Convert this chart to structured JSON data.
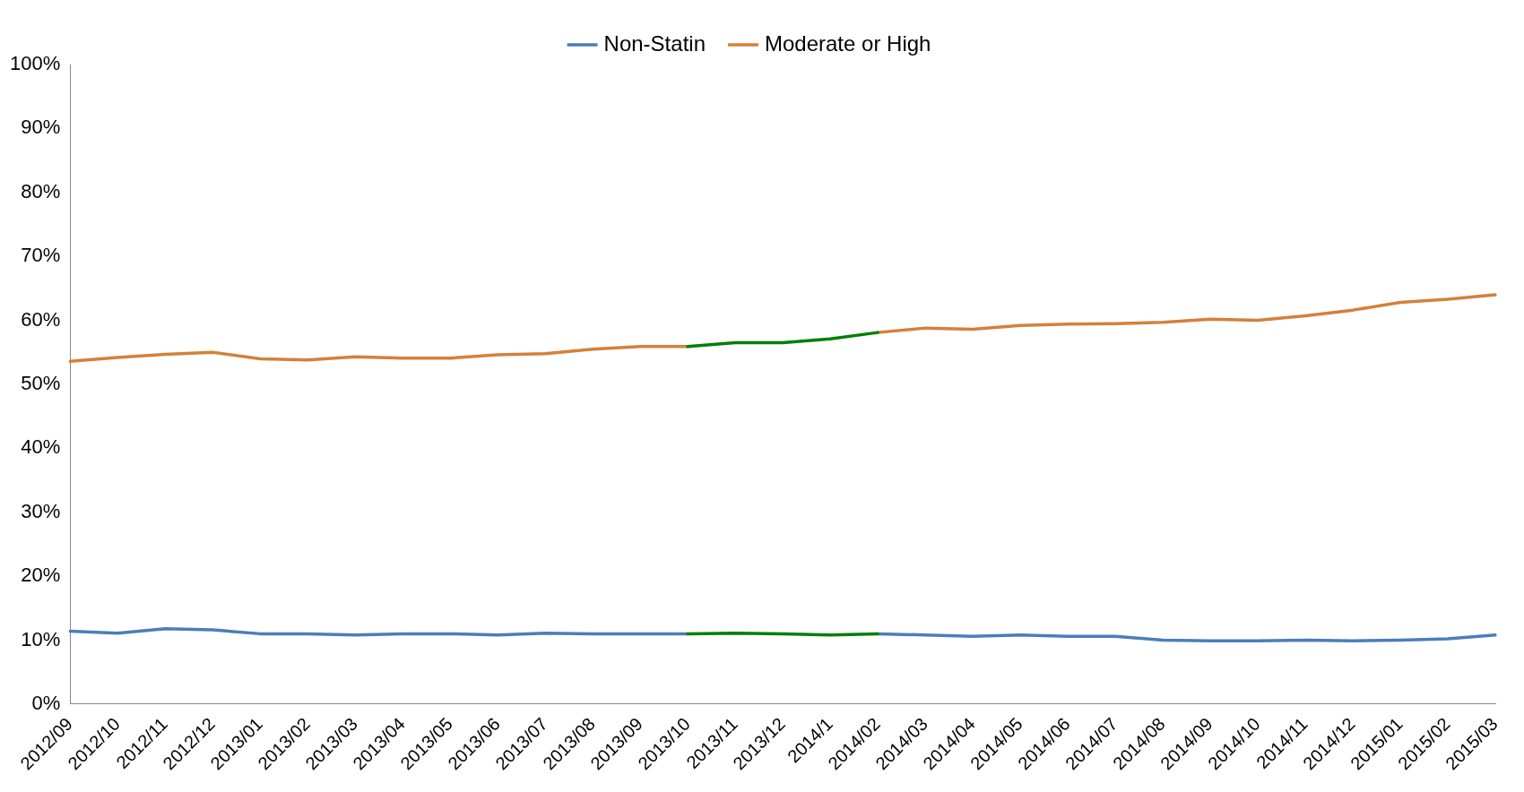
{
  "chart_data": {
    "type": "line",
    "categories": [
      "2012/09",
      "2012/10",
      "2012/11",
      "2012/12",
      "2013/01",
      "2013/02",
      "2013/03",
      "2013/04",
      "2013/05",
      "2013/06",
      "2013/07",
      "2013/08",
      "2013/09",
      "2013/10",
      "2013/11",
      "2013/12",
      "2014/1",
      "2014/02",
      "2014/03",
      "2014/04",
      "2014/05",
      "2014/06",
      "2014/07",
      "2014/08",
      "2014/09",
      "2014/10",
      "2014/11",
      "2014/12",
      "2015/01",
      "2015/02",
      "2015/03"
    ],
    "series": [
      {
        "name": "Moderate or High",
        "color": "#d4803a",
        "values": [
          53.6,
          54.2,
          54.7,
          55.0,
          54.0,
          53.8,
          54.3,
          54.1,
          54.1,
          54.6,
          54.8,
          55.5,
          55.9,
          55.9,
          null,
          null,
          null,
          58.1,
          58.8,
          58.6,
          59.2,
          59.4,
          59.5,
          59.7,
          60.2,
          60.0,
          60.7,
          61.6,
          62.8,
          63.3,
          64.0
        ]
      },
      {
        "name": "Non-Statin",
        "color": "#4a7ebb",
        "values": [
          11.4,
          11.1,
          11.8,
          11.6,
          11.0,
          11.0,
          10.8,
          11.0,
          11.0,
          10.8,
          11.1,
          11.0,
          11.0,
          11.0,
          null,
          null,
          null,
          11.0,
          10.8,
          10.6,
          10.8,
          10.6,
          10.6,
          10.0,
          9.9,
          9.9,
          10.0,
          9.9,
          10.0,
          10.2,
          10.8
        ]
      },
      {
        "color": "#008000",
        "values": [
          null,
          null,
          null,
          null,
          null,
          null,
          null,
          null,
          null,
          null,
          null,
          null,
          null,
          55.9,
          56.5,
          56.5,
          57.1,
          58.1,
          null,
          null,
          null,
          null,
          null,
          null,
          null,
          null,
          null,
          null,
          null,
          null,
          null
        ]
      },
      {
        "color": "#008000",
        "values": [
          null,
          null,
          null,
          null,
          null,
          null,
          null,
          null,
          null,
          null,
          null,
          null,
          null,
          11.0,
          11.1,
          11.0,
          10.8,
          11.0,
          null,
          null,
          null,
          null,
          null,
          null,
          null,
          null,
          null,
          null,
          null,
          null,
          null
        ]
      }
    ],
    "ylim": [
      0,
      100
    ],
    "yticks": [
      {
        "value": 0,
        "label": "0%"
      },
      {
        "value": 10,
        "label": "10%"
      },
      {
        "value": 20,
        "label": "20%"
      },
      {
        "value": 30,
        "label": "30%"
      },
      {
        "value": 40,
        "label": "40%"
      },
      {
        "value": 50,
        "label": "50%"
      },
      {
        "value": 60,
        "label": "60%"
      },
      {
        "value": 70,
        "label": "70%"
      },
      {
        "value": 80,
        "label": "80%"
      },
      {
        "value": 90,
        "label": "90%"
      },
      {
        "value": 100,
        "label": "100%"
      }
    ],
    "grid": false,
    "legend": "top",
    "marker": "none",
    "line_style": "solid"
  }
}
